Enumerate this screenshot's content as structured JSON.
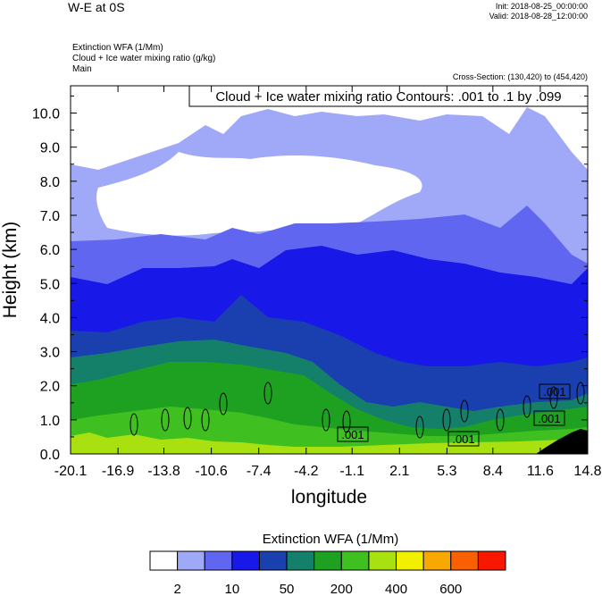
{
  "header": {
    "title": "W-E at 0S",
    "init": "Init: 2018-08-25_00:00:00",
    "valid": "Valid: 2018-08-28_12:00:00",
    "variables": [
      "Extinction WFA   (1/Mm)",
      "Cloud + Ice water mixing ratio   (g/kg)",
      "Main"
    ],
    "cross_section": "Cross-Section: (130,420) to (454,420)"
  },
  "chart_data": {
    "type": "heatmap",
    "xlabel": "longitude",
    "ylabel": "Height (km)",
    "x_ticks": [
      "-20.1",
      "-16.9",
      "-13.8",
      "-10.6",
      "-7.4",
      "-4.2",
      "-1.1",
      "2.1",
      "5.3",
      "8.4",
      "11.6",
      "14.8"
    ],
    "y_ticks": [
      "0.0",
      "1.0",
      "2.0",
      "3.0",
      "4.0",
      "5.0",
      "6.0",
      "7.0",
      "8.0",
      "9.0",
      "10.0"
    ],
    "xlim": [
      -20.1,
      14.8
    ],
    "ylim": [
      0.0,
      10.8
    ],
    "contour_label": "Cloud + Ice water mixing ratio Contours: .001 to .1 by .099",
    "contour_marks": [
      ".001",
      ".001",
      ".001",
      ".001"
    ],
    "colorbar": {
      "title": "Extinction WFA  (1/Mm)",
      "labels": [
        "2",
        "10",
        "50",
        "200",
        "400",
        "600"
      ],
      "colors": [
        "#ffffff",
        "#a0a8f8",
        "#6066f0",
        "#1818e8",
        "#1a40b0",
        "#14806a",
        "#1ea020",
        "#40c020",
        "#a8e010",
        "#f0f000",
        "#f8a800",
        "#f86000",
        "#f81800"
      ]
    },
    "colors": {
      "white": "#ffffff",
      "pale": "#a0a8f8",
      "light": "#6066f0",
      "blue": "#1818e8",
      "navy": "#1a40b0",
      "teal": "#14806a",
      "green": "#1ea020",
      "lime": "#40c020",
      "yellow": "#a8e010",
      "terrain": "#000000"
    }
  }
}
